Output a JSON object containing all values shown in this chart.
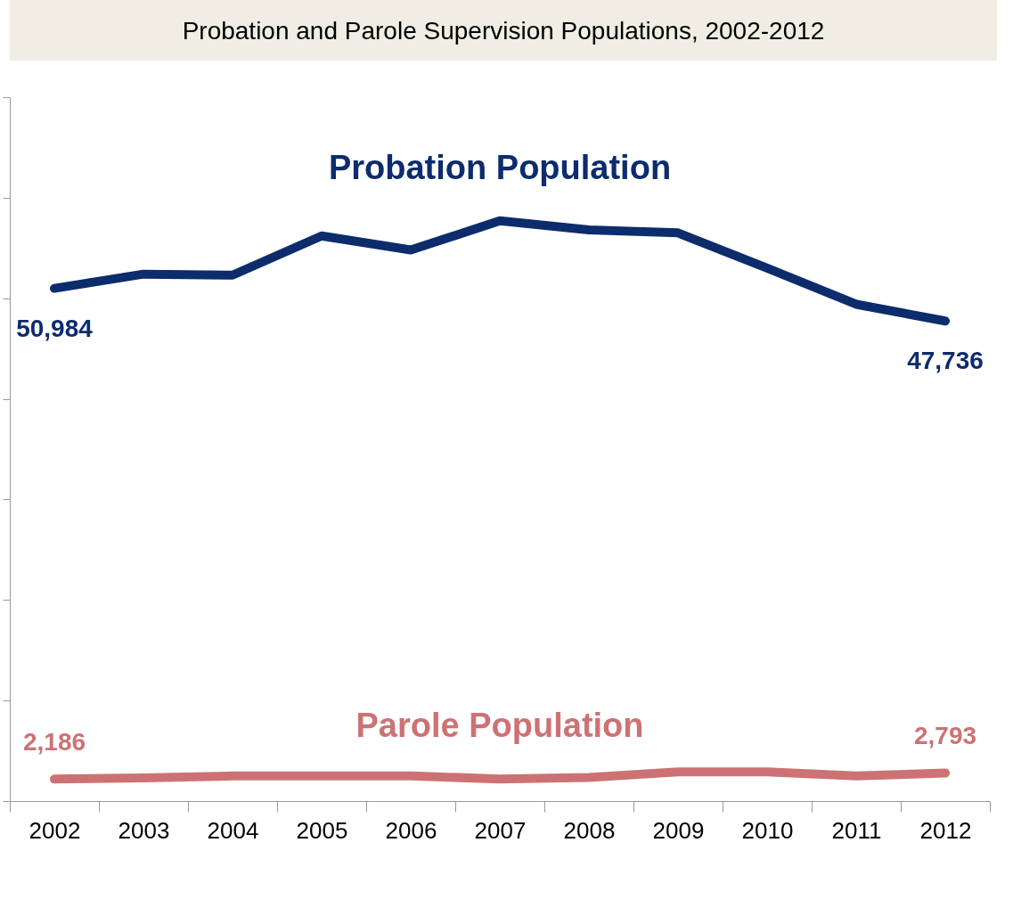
{
  "chart_data": {
    "type": "line",
    "title": "Probation and Parole Supervision Populations, 2002-2012",
    "categories": [
      "2002",
      "2003",
      "2004",
      "2005",
      "2006",
      "2007",
      "2008",
      "2009",
      "2010",
      "2011",
      "2012"
    ],
    "series": [
      {
        "name": "Probation Population",
        "color": "#0c2c6c",
        "values": [
          50984,
          52400,
          52300,
          56200,
          54800,
          57700,
          56800,
          56500,
          53000,
          49400,
          47736
        ],
        "value_labels": [
          "50,984",
          null,
          null,
          null,
          null,
          null,
          null,
          null,
          null,
          null,
          "47,736"
        ]
      },
      {
        "name": "Parole Population",
        "color": "#cd7274",
        "values": [
          2186,
          2300,
          2500,
          2500,
          2500,
          2200,
          2350,
          2900,
          2900,
          2500,
          2793
        ],
        "value_labels": [
          "2,186",
          null,
          null,
          null,
          null,
          null,
          null,
          null,
          null,
          null,
          "2,793"
        ]
      }
    ],
    "ylim": [
      0,
      70000
    ],
    "yticks": [
      {
        "value": 0,
        "label": null
      },
      {
        "value": 10000,
        "label": null
      },
      {
        "value": 20000,
        "label": null
      },
      {
        "value": 30000,
        "label": null
      },
      {
        "value": 40000,
        "label": null
      },
      {
        "value": 50000,
        "label": null
      },
      {
        "value": 60000,
        "label": null
      },
      {
        "value": 70000,
        "label": null
      }
    ],
    "tick_labels": "x",
    "grid": false,
    "legend": false,
    "line_style": "solid",
    "marker": "none"
  }
}
